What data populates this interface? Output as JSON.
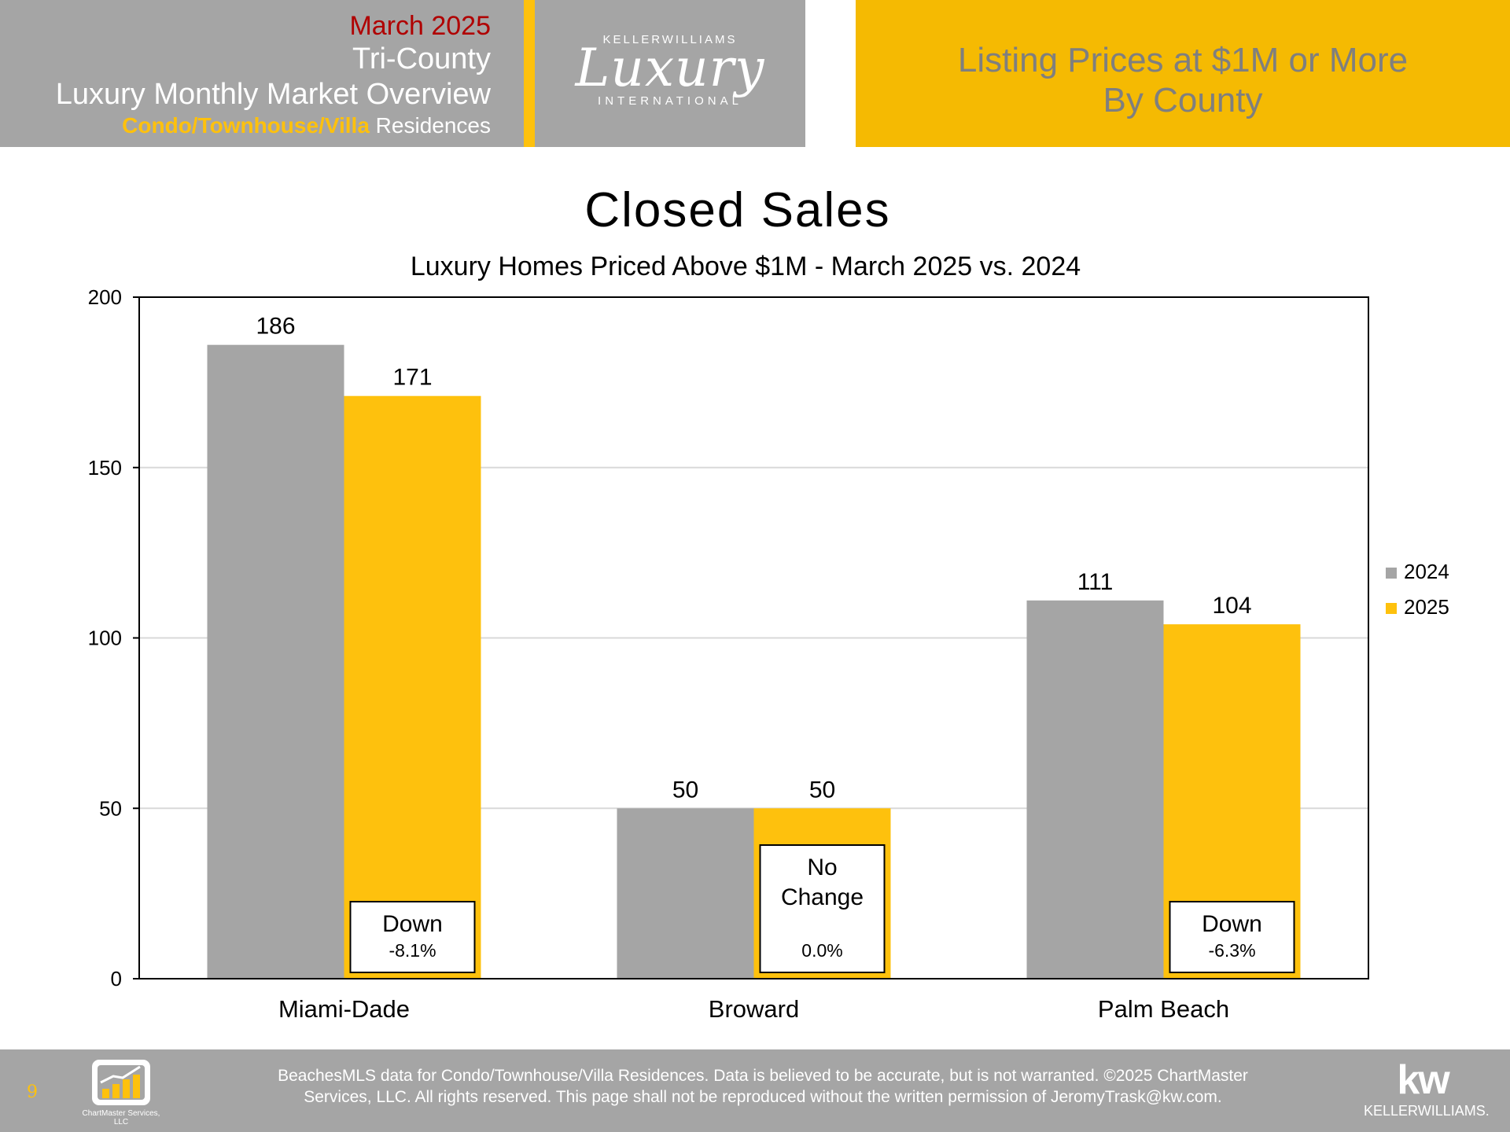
{
  "header": {
    "month": "March 2025",
    "region": "Tri-County",
    "title": "Luxury Monthly Market Overview",
    "subtitle_highlight": "Condo/Townhouse/Villa",
    "subtitle_rest": " Residences",
    "logo": {
      "top": "KELLERWILLIAMS",
      "main": "Luxury",
      "bottom": "INTERNATIONAL"
    },
    "right_line1": "Listing Prices at $1M or More",
    "right_line2": "By County"
  },
  "colors": {
    "gray": "#a5a5a5",
    "gold": "#fec10d",
    "month_red": "#b00000"
  },
  "chart_data": {
    "type": "bar",
    "title": "Closed Sales",
    "subtitle": "Luxury Homes Priced Above $1M - March 2025 vs. 2024",
    "categories": [
      "Miami-Dade",
      "Broward",
      "Palm Beach"
    ],
    "series": [
      {
        "name": "2024",
        "values": [
          186,
          50,
          111
        ],
        "color": "#a5a5a5"
      },
      {
        "name": "2025",
        "values": [
          171,
          50,
          104
        ],
        "color": "#fec10d"
      }
    ],
    "ylim": [
      0,
      200
    ],
    "yticks": [
      0,
      50,
      100,
      150,
      200
    ],
    "grid": true,
    "legend": "right",
    "annotations": [
      {
        "category": "Miami-Dade",
        "label": "Down",
        "value": "-8.1%"
      },
      {
        "category": "Broward",
        "label": "No\nChange",
        "value": "0.0%"
      },
      {
        "category": "Palm Beach",
        "label": "Down",
        "value": "-6.3%"
      }
    ]
  },
  "footer": {
    "page": "9",
    "chartmaster_name": "ChartMaster Services, LLC",
    "disclaimer_line1": "BeachesMLS data for Condo/Townhouse/Villa Residences.  Data is believed to be accurate, but is not warranted.   ©2025  ChartMaster",
    "disclaimer_line2": "Services, LLC.  All rights reserved. This page shall not be reproduced without the written permission of JeromyTrask@kw.com.",
    "kw_mark": "kw",
    "kw_name": "KELLERWILLIAMS."
  }
}
